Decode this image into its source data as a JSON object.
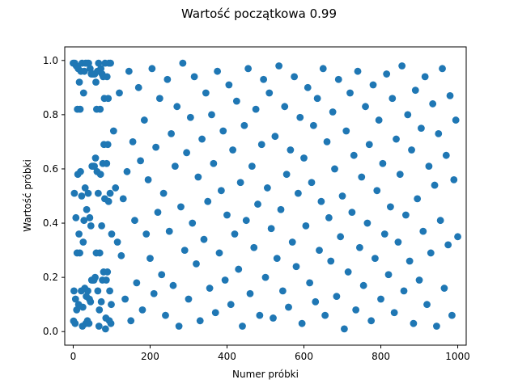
{
  "chart_data": {
    "type": "scatter",
    "title": "Wartość początkowa 0.99",
    "xlabel": "Numer próbki",
    "ylabel": "Wartość próbki",
    "xlim": [
      -22,
      1022
    ],
    "ylim": [
      -0.05,
      1.05
    ],
    "xticks": [
      "0",
      "200",
      "400",
      "600",
      "800",
      "1000"
    ],
    "yticks": [
      "0.0",
      "0.2",
      "0.4",
      "0.6",
      "0.8",
      "1.0"
    ],
    "marker_color": "#1f77b4",
    "grid": false,
    "series": [
      {
        "values": [
          [
            0,
            0.99
          ],
          [
            1,
            0.039
          ],
          [
            2,
            0.15
          ],
          [
            3,
            0.51
          ],
          [
            4,
            0.99
          ],
          [
            5,
            0.03
          ],
          [
            6,
            0.12
          ],
          [
            7,
            0.42
          ],
          [
            8,
            0.98
          ],
          [
            9,
            0.08
          ],
          [
            10,
            0.29
          ],
          [
            11,
            0.82
          ],
          [
            12,
            0.58
          ],
          [
            13,
            0.97
          ],
          [
            14,
            0.1
          ],
          [
            15,
            0.36
          ],
          [
            16,
            0.92
          ],
          [
            17,
            0.29
          ],
          [
            18,
            0.82
          ],
          [
            19,
            0.59
          ],
          [
            20,
            0.96
          ],
          [
            21,
            0.15
          ],
          [
            22,
            0.5
          ],
          [
            23,
            0.99
          ],
          [
            24,
            0.02
          ],
          [
            25,
            0.09
          ],
          [
            26,
            0.33
          ],
          [
            27,
            0.88
          ],
          [
            28,
            0.41
          ],
          [
            29,
            0.96
          ],
          [
            30,
            0.16
          ],
          [
            31,
            0.53
          ],
          [
            32,
            0.99
          ],
          [
            33,
            0.03
          ],
          [
            34,
            0.13
          ],
          [
            35,
            0.45
          ],
          [
            36,
            0.99
          ],
          [
            37,
            0.04
          ],
          [
            38,
            0.15
          ],
          [
            39,
            0.51
          ],
          [
            40,
            0.99
          ],
          [
            41,
            0.03
          ],
          [
            42,
            0.12
          ],
          [
            43,
            0.42
          ],
          [
            44,
            0.97
          ],
          [
            45,
            0.11
          ],
          [
            46,
            0.39
          ],
          [
            47,
            0.95
          ],
          [
            48,
            0.19
          ],
          [
            49,
            0.61
          ],
          [
            50,
            0.95
          ],
          [
            51,
            0.19
          ],
          [
            52,
            0.61
          ],
          [
            53,
            0.95
          ],
          [
            54,
            0.19
          ],
          [
            55,
            0.61
          ],
          [
            56,
            0.95
          ],
          [
            57,
            0.2
          ],
          [
            58,
            0.64
          ],
          [
            59,
            0.92
          ],
          [
            60,
            0.29
          ],
          [
            61,
            0.82
          ],
          [
            62,
            0.59
          ],
          [
            63,
            0.96
          ],
          [
            64,
            0.15
          ],
          [
            65,
            0.51
          ],
          [
            66,
            0.99
          ],
          [
            67,
            0.02
          ],
          [
            68,
            0.08
          ],
          [
            69,
            0.29
          ],
          [
            70,
            0.82
          ],
          [
            71,
            0.58
          ],
          [
            72,
            0.97
          ],
          [
            73,
            0.11
          ],
          [
            74,
            0.39
          ],
          [
            75,
            0.95
          ],
          [
            76,
            0.19
          ],
          [
            77,
            0.62
          ],
          [
            78,
            0.94
          ],
          [
            79,
            0.22
          ],
          [
            80,
            0.69
          ],
          [
            81,
            0.86
          ],
          [
            82,
            0.49
          ],
          [
            83,
            0.99
          ],
          [
            84,
            0.01
          ],
          [
            85,
            0.05
          ],
          [
            86,
            0.19
          ],
          [
            87,
            0.62
          ],
          [
            88,
            0.94
          ],
          [
            89,
            0.22
          ],
          [
            90,
            0.69
          ],
          [
            91,
            0.86
          ],
          [
            92,
            0.48
          ],
          [
            93,
            0.99
          ],
          [
            94,
            0.04
          ],
          [
            95,
            0.15
          ],
          [
            96,
            0.51
          ],
          [
            97,
            0.99
          ],
          [
            98,
            0.03
          ],
          [
            99,
            0.1
          ],
          [
            100,
            0.36
          ],
          [
            105,
            0.74
          ],
          [
            110,
            0.53
          ],
          [
            115,
            0.33
          ],
          [
            120,
            0.88
          ],
          [
            125,
            0.28
          ],
          [
            130,
            0.49
          ],
          [
            135,
            0.12
          ],
          [
            140,
            0.59
          ],
          [
            145,
            0.96
          ],
          [
            150,
            0.04
          ],
          [
            155,
            0.7
          ],
          [
            160,
            0.41
          ],
          [
            165,
            0.18
          ],
          [
            170,
            0.9
          ],
          [
            175,
            0.63
          ],
          [
            180,
            0.08
          ],
          [
            185,
            0.78
          ],
          [
            190,
            0.36
          ],
          [
            195,
            0.56
          ],
          [
            200,
            0.27
          ],
          [
            205,
            0.97
          ],
          [
            210,
            0.14
          ],
          [
            215,
            0.68
          ],
          [
            220,
            0.44
          ],
          [
            225,
            0.86
          ],
          [
            230,
            0.21
          ],
          [
            235,
            0.51
          ],
          [
            240,
            0.06
          ],
          [
            245,
            0.93
          ],
          [
            250,
            0.37
          ],
          [
            255,
            0.73
          ],
          [
            260,
            0.17
          ],
          [
            265,
            0.61
          ],
          [
            270,
            0.83
          ],
          [
            275,
            0.02
          ],
          [
            280,
            0.46
          ],
          [
            285,
            0.99
          ],
          [
            290,
            0.3
          ],
          [
            295,
            0.66
          ],
          [
            300,
            0.12
          ],
          [
            305,
            0.79
          ],
          [
            310,
            0.4
          ],
          [
            315,
            0.94
          ],
          [
            320,
            0.25
          ],
          [
            325,
            0.57
          ],
          [
            330,
            0.04
          ],
          [
            335,
            0.71
          ],
          [
            340,
            0.34
          ],
          [
            345,
            0.88
          ],
          [
            350,
            0.48
          ],
          [
            355,
            0.16
          ],
          [
            360,
            0.8
          ],
          [
            365,
            0.62
          ],
          [
            370,
            0.07
          ],
          [
            375,
            0.96
          ],
          [
            380,
            0.29
          ],
          [
            385,
            0.52
          ],
          [
            390,
            0.74
          ],
          [
            395,
            0.19
          ],
          [
            400,
            0.43
          ],
          [
            405,
            0.91
          ],
          [
            410,
            0.1
          ],
          [
            415,
            0.67
          ],
          [
            420,
            0.36
          ],
          [
            425,
            0.85
          ],
          [
            430,
            0.23
          ],
          [
            435,
            0.55
          ],
          [
            440,
            0.02
          ],
          [
            445,
            0.76
          ],
          [
            450,
            0.41
          ],
          [
            455,
            0.97
          ],
          [
            460,
            0.14
          ],
          [
            465,
            0.61
          ],
          [
            470,
            0.31
          ],
          [
            475,
            0.82
          ],
          [
            480,
            0.47
          ],
          [
            485,
            0.06
          ],
          [
            490,
            0.69
          ],
          [
            495,
            0.93
          ],
          [
            500,
            0.2
          ],
          [
            505,
            0.53
          ],
          [
            510,
            0.88
          ],
          [
            515,
            0.38
          ],
          [
            520,
            0.05
          ],
          [
            525,
            0.72
          ],
          [
            530,
            0.27
          ],
          [
            535,
            0.98
          ],
          [
            540,
            0.45
          ],
          [
            545,
            0.15
          ],
          [
            550,
            0.83
          ],
          [
            555,
            0.58
          ],
          [
            560,
            0.09
          ],
          [
            565,
            0.67
          ],
          [
            570,
            0.33
          ],
          [
            575,
            0.94
          ],
          [
            580,
            0.24
          ],
          [
            585,
            0.51
          ],
          [
            590,
            0.79
          ],
          [
            595,
            0.03
          ],
          [
            600,
            0.64
          ],
          [
            605,
            0.39
          ],
          [
            610,
            0.9
          ],
          [
            615,
            0.18
          ],
          [
            620,
            0.55
          ],
          [
            625,
            0.76
          ],
          [
            630,
            0.11
          ],
          [
            635,
            0.86
          ],
          [
            640,
            0.3
          ],
          [
            645,
            0.48
          ],
          [
            650,
            0.97
          ],
          [
            655,
            0.06
          ],
          [
            660,
            0.7
          ],
          [
            665,
            0.42
          ],
          [
            670,
            0.26
          ],
          [
            675,
            0.81
          ],
          [
            680,
            0.6
          ],
          [
            685,
            0.13
          ],
          [
            690,
            0.93
          ],
          [
            695,
            0.35
          ],
          [
            700,
            0.5
          ],
          [
            705,
            0.01
          ],
          [
            710,
            0.74
          ],
          [
            715,
            0.22
          ],
          [
            720,
            0.88
          ],
          [
            725,
            0.44
          ],
          [
            730,
            0.65
          ],
          [
            735,
            0.08
          ],
          [
            740,
            0.96
          ],
          [
            745,
            0.31
          ],
          [
            750,
            0.57
          ],
          [
            755,
            0.17
          ],
          [
            760,
            0.83
          ],
          [
            765,
            0.4
          ],
          [
            770,
            0.69
          ],
          [
            775,
            0.04
          ],
          [
            780,
            0.91
          ],
          [
            785,
            0.27
          ],
          [
            790,
            0.52
          ],
          [
            795,
            0.78
          ],
          [
            800,
            0.12
          ],
          [
            805,
            0.62
          ],
          [
            810,
            0.36
          ],
          [
            815,
            0.95
          ],
          [
            820,
            0.21
          ],
          [
            825,
            0.46
          ],
          [
            830,
            0.86
          ],
          [
            835,
            0.07
          ],
          [
            840,
            0.71
          ],
          [
            845,
            0.33
          ],
          [
            850,
            0.58
          ],
          [
            855,
            0.98
          ],
          [
            860,
            0.15
          ],
          [
            865,
            0.43
          ],
          [
            870,
            0.8
          ],
          [
            875,
            0.26
          ],
          [
            880,
            0.67
          ],
          [
            885,
            0.03
          ],
          [
            890,
            0.89
          ],
          [
            895,
            0.49
          ],
          [
            900,
            0.19
          ],
          [
            905,
            0.75
          ],
          [
            910,
            0.37
          ],
          [
            915,
            0.94
          ],
          [
            920,
            0.1
          ],
          [
            925,
            0.61
          ],
          [
            930,
            0.29
          ],
          [
            935,
            0.84
          ],
          [
            940,
            0.54
          ],
          [
            945,
            0.02
          ],
          [
            950,
            0.73
          ],
          [
            955,
            0.41
          ],
          [
            960,
            0.97
          ],
          [
            965,
            0.16
          ],
          [
            970,
            0.65
          ],
          [
            975,
            0.32
          ],
          [
            980,
            0.87
          ],
          [
            985,
            0.06
          ],
          [
            990,
            0.56
          ],
          [
            995,
            0.78
          ],
          [
            1000,
            0.35
          ]
        ]
      }
    ]
  }
}
